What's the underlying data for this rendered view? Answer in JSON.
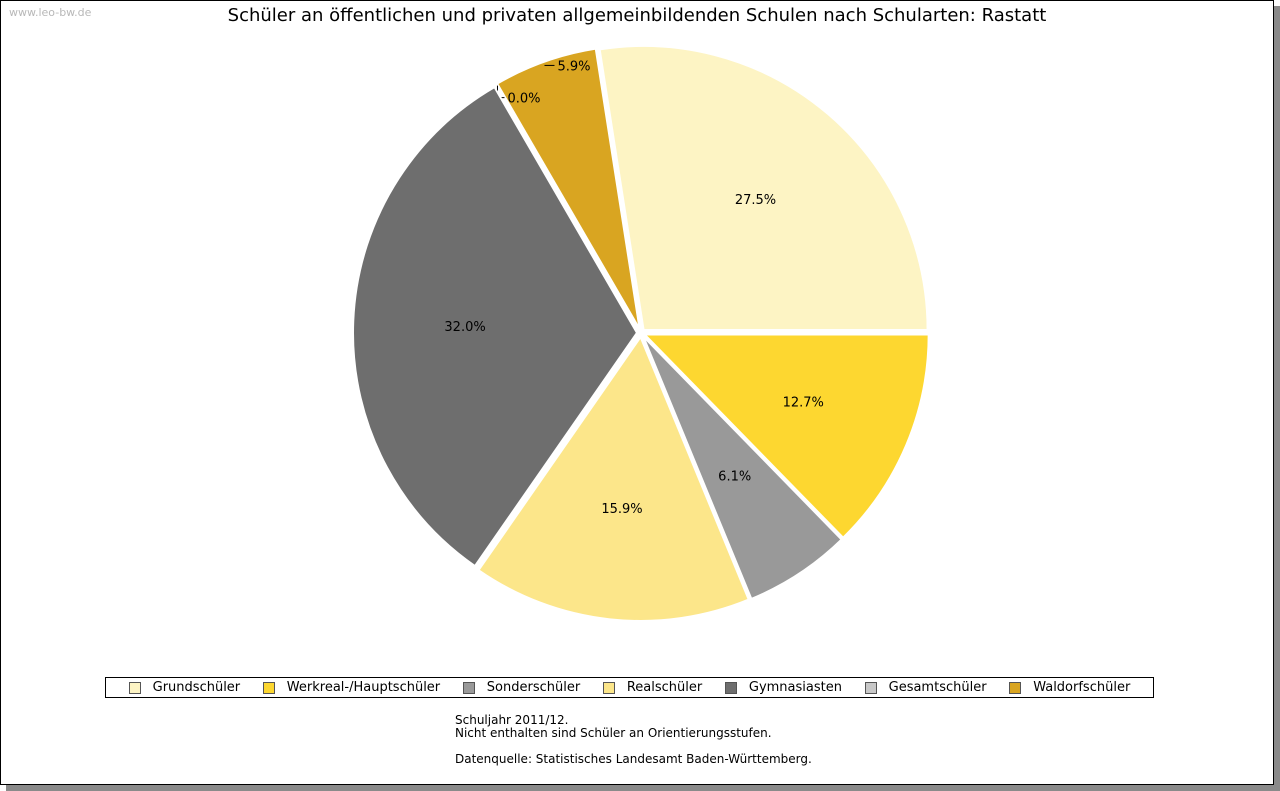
{
  "watermark": "www.leo-bw.de",
  "chart_data": {
    "type": "pie",
    "title": "Schüler an öffentlichen und privaten allgemeinbildenden Schulen nach Schularten: Rastatt",
    "slices": [
      {
        "name": "Grundschüler",
        "value": 27.5,
        "label": "27.5%",
        "color": "#FDF4C4"
      },
      {
        "name": "Waldorfschüler",
        "value": 5.9,
        "label": "5.9%",
        "color": "#D9A521"
      },
      {
        "name": "Gesamtschüler",
        "value": 0.0,
        "label": "0.0%",
        "color": "#C8C8C8"
      },
      {
        "name": "Gymnasiasten",
        "value": 32.0,
        "label": "32.0%",
        "color": "#6E6E6E"
      },
      {
        "name": "Realschüler",
        "value": 15.9,
        "label": "15.9%",
        "color": "#FCE68A"
      },
      {
        "name": "Sonderschüler",
        "value": 6.1,
        "label": "6.1%",
        "color": "#999999"
      },
      {
        "name": "Werkreal-/Hauptschüler",
        "value": 12.7,
        "label": "12.7%",
        "color": "#FDD730"
      }
    ],
    "legend": {
      "position": "bottom",
      "entries": [
        {
          "name": "Grundschüler",
          "color": "#FDF4C4"
        },
        {
          "name": "Werkreal-/Hauptschüler",
          "color": "#FDD730"
        },
        {
          "name": "Sonderschüler",
          "color": "#999999"
        },
        {
          "name": "Realschüler",
          "color": "#FCE68A"
        },
        {
          "name": "Gymnasiasten",
          "color": "#6E6E6E"
        },
        {
          "name": "Gesamtschüler",
          "color": "#C8C8C8"
        },
        {
          "name": "Waldorfschüler",
          "color": "#D9A521"
        }
      ]
    }
  },
  "footnote": {
    "line1": "Schuljahr 2011/12.",
    "line2": "Nicht enthalten sind Schüler an Orientierungsstufen.",
    "line3": "",
    "line4": "Datenquelle: Statistisches Landesamt Baden-Württemberg."
  }
}
